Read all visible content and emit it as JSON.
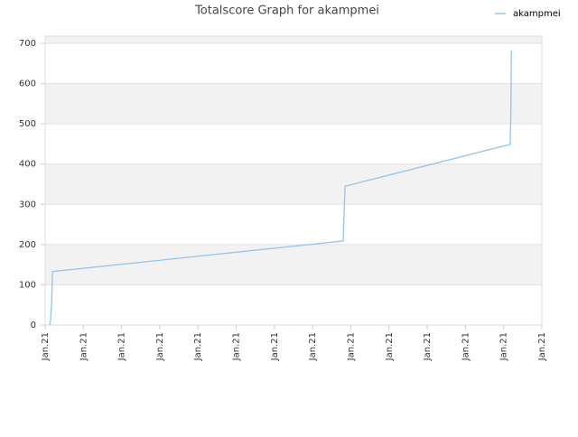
{
  "chart_data": {
    "type": "line",
    "title": "Totalscore Graph for akampmei",
    "x": [
      0.12,
      0.14,
      0.17,
      0.19,
      0.2,
      7.8,
      7.82,
      7.85,
      12.17,
      12.19,
      12.2
    ],
    "series": [
      {
        "name": "akampmei",
        "color": "#90c4ee",
        "values": [
          0,
          10,
          55,
          130,
          133,
          209,
          270,
          345,
          449,
          535,
          683
        ]
      }
    ],
    "xlim": [
      0,
      13
    ],
    "xticks": [
      {
        "value": 0,
        "label": "Jan.21"
      },
      {
        "value": 1,
        "label": "Jan.21"
      },
      {
        "value": 2,
        "label": "Jan.21"
      },
      {
        "value": 3,
        "label": "Jan.21"
      },
      {
        "value": 4,
        "label": "Jan.21"
      },
      {
        "value": 5,
        "label": "Jan.21"
      },
      {
        "value": 6,
        "label": "Jan.21"
      },
      {
        "value": 7,
        "label": "Jan.21"
      },
      {
        "value": 8,
        "label": "Jan.21"
      },
      {
        "value": 9,
        "label": "Jan.21"
      },
      {
        "value": 10,
        "label": "Jan.21"
      },
      {
        "value": 11,
        "label": "Jan.21"
      },
      {
        "value": 12,
        "label": "Jan.21"
      },
      {
        "value": 13,
        "label": "Jan.21"
      }
    ],
    "ylim": [
      0,
      718
    ],
    "yticks": [
      0,
      100,
      200,
      300,
      400,
      500,
      600,
      700
    ],
    "grid": true,
    "legend": "top-right"
  }
}
